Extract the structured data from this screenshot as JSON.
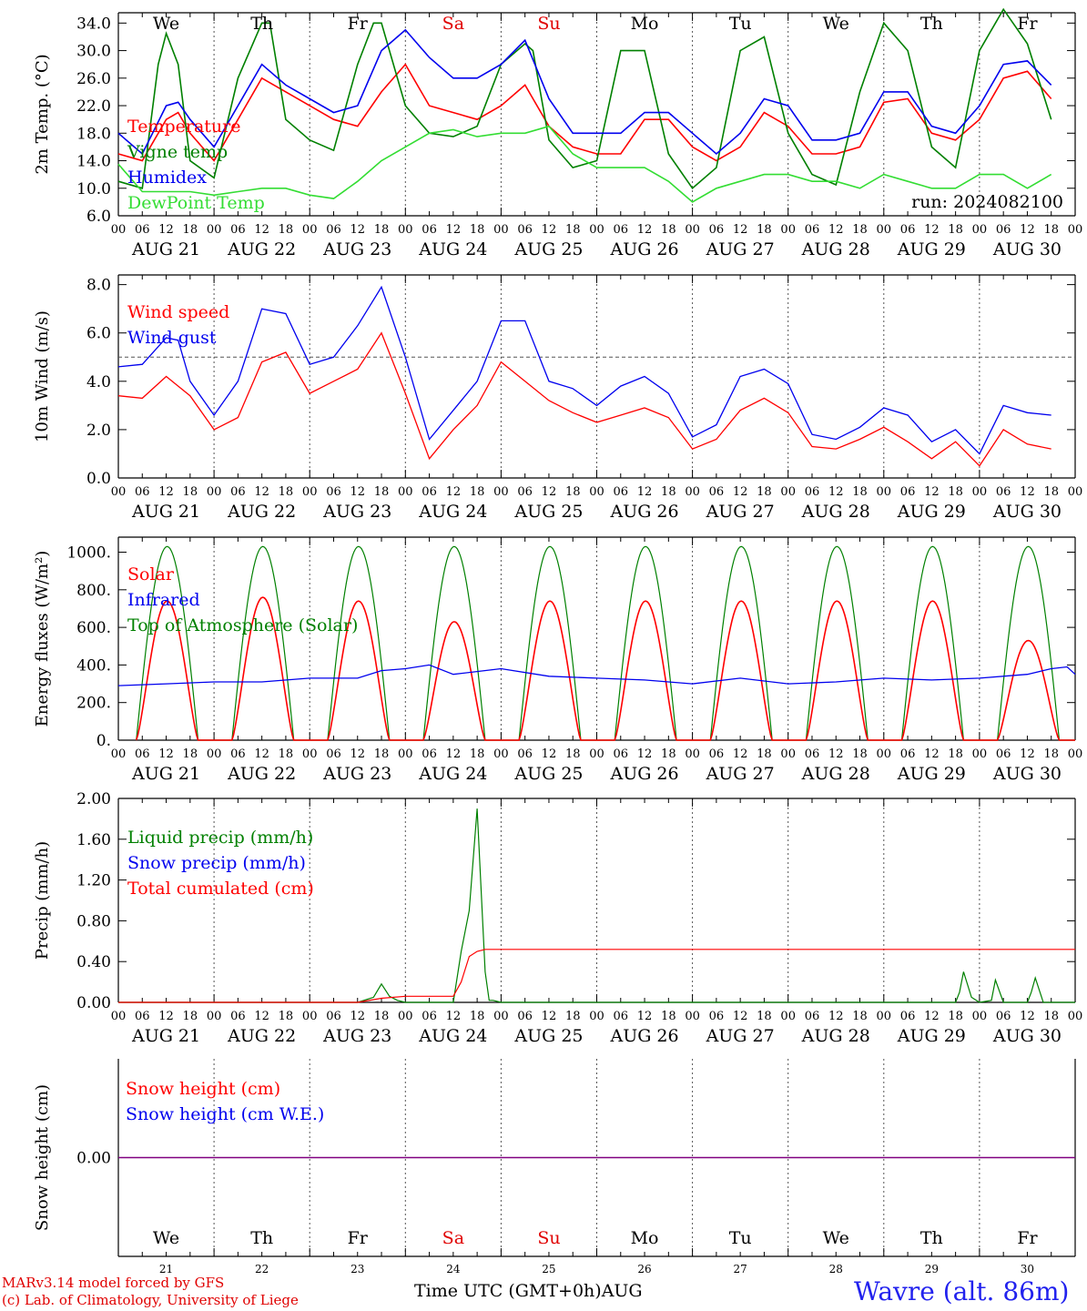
{
  "run_label": "run: 2024082100",
  "x_axis": {
    "hour_ticks": [
      "00",
      "06",
      "12",
      "18"
    ],
    "end_tick": "00",
    "dates": [
      "AUG 21",
      "AUG 22",
      "AUG 23",
      "AUG 24",
      "AUG 25",
      "AUG 26",
      "AUG 27",
      "AUG 28",
      "AUG 29",
      "AUG 30"
    ],
    "weekdays": [
      "We",
      "Th",
      "Fr",
      "Sa",
      "Su",
      "Mo",
      "Tu",
      "We",
      "Th",
      "Fr"
    ],
    "weekend_color": "#e00000",
    "weekday_color": "#000000",
    "weekend_days": [
      "Sa",
      "Su"
    ],
    "bottom_day_numbers": [
      "21",
      "22",
      "23",
      "24",
      "25",
      "26",
      "27",
      "28",
      "29",
      "30"
    ],
    "bottom_title": "Time UTC (GMT+0h)",
    "bottom_month": "AUG"
  },
  "footer": {
    "model_line": "MARv3.14 model forced by GFS",
    "credit_line": "(c) Lab. of Climatology, University of Liege",
    "station": "Wavre (alt. 86m)",
    "model_color": "#e00000",
    "station_color": "#2222ee"
  },
  "colors": {
    "red": "#ff0000",
    "green": "#008000",
    "blue": "#0000ee",
    "lightgreen": "#33dd33",
    "purple": "#800080"
  },
  "chart_data": [
    {
      "id": "temperature",
      "type": "line",
      "ylabel": "2m Temp. (°C)",
      "ylim": [
        6.0,
        35.5
      ],
      "yticks": [
        "6.0",
        "10.0",
        "14.0",
        "18.0",
        "22.0",
        "26.0",
        "30.0",
        "34.0"
      ],
      "ytick_values": [
        6,
        10,
        14,
        18,
        22,
        26,
        30,
        34
      ],
      "x_unit": "hours since AUG 21 00 UTC",
      "legend": [
        "Temperature",
        "Vigne temp",
        "Humidex",
        "DewPoint Temp"
      ],
      "series": [
        {
          "name": "Temperature",
          "color": "red",
          "x": [
            0,
            6,
            12,
            15,
            18,
            24,
            30,
            36,
            42,
            48,
            54,
            60,
            66,
            72,
            78,
            84,
            90,
            96,
            102,
            108,
            114,
            120,
            126,
            132,
            138,
            144,
            150,
            156,
            162,
            168,
            174,
            180,
            186,
            192,
            198,
            204,
            210,
            216,
            222,
            228,
            234
          ],
          "y": [
            15,
            14,
            20,
            21,
            18,
            14,
            20,
            26,
            24,
            22,
            20,
            19,
            24,
            28,
            22,
            21,
            20,
            22,
            25,
            19,
            16,
            15,
            15,
            20,
            20,
            16,
            14,
            16,
            21,
            19,
            15,
            15,
            16,
            22.5,
            23,
            18,
            17,
            20,
            26,
            27,
            23
          ]
        },
        {
          "name": "Vigne temp",
          "color": "green",
          "x": [
            0,
            6,
            10,
            12,
            15,
            18,
            24,
            30,
            36,
            38,
            42,
            48,
            54,
            60,
            64,
            66,
            72,
            78,
            84,
            90,
            96,
            102,
            104,
            108,
            114,
            120,
            126,
            132,
            138,
            144,
            150,
            156,
            162,
            168,
            174,
            180,
            186,
            192,
            198,
            204,
            210,
            216,
            222,
            228,
            234
          ],
          "y": [
            11,
            10,
            28,
            32.5,
            28,
            14,
            11.5,
            26,
            34,
            34,
            20,
            17,
            15.5,
            28,
            34,
            34,
            22,
            18,
            17.5,
            19,
            28,
            31,
            30,
            17,
            13,
            14,
            30,
            30,
            15,
            10,
            13,
            30,
            32,
            18,
            12,
            10.5,
            24,
            34,
            30,
            16,
            13,
            30,
            36,
            31,
            20
          ]
        },
        {
          "name": "Humidex",
          "color": "blue",
          "x": [
            0,
            6,
            12,
            15,
            18,
            24,
            30,
            36,
            42,
            48,
            54,
            60,
            66,
            72,
            78,
            84,
            90,
            96,
            102,
            108,
            114,
            120,
            126,
            132,
            138,
            144,
            150,
            156,
            162,
            168,
            174,
            180,
            186,
            192,
            198,
            204,
            210,
            216,
            222,
            228,
            234
          ],
          "y": [
            18,
            15,
            22,
            22.5,
            20,
            16,
            22,
            28,
            25,
            23,
            21,
            22,
            30,
            33,
            29,
            26,
            26,
            28,
            31.5,
            23,
            18,
            18,
            18,
            21,
            21,
            18,
            15,
            18,
            23,
            22,
            17,
            17,
            18,
            24,
            24,
            19,
            18,
            22,
            28,
            28.5,
            25
          ]
        },
        {
          "name": "DewPoint Temp",
          "color": "lightgreen",
          "x": [
            0,
            6,
            12,
            18,
            24,
            30,
            36,
            42,
            48,
            54,
            60,
            66,
            72,
            78,
            84,
            90,
            96,
            102,
            108,
            114,
            120,
            126,
            132,
            138,
            144,
            150,
            156,
            162,
            168,
            174,
            180,
            186,
            192,
            198,
            204,
            210,
            216,
            222,
            228,
            234
          ],
          "y": [
            13.5,
            9.5,
            9.5,
            9.5,
            9,
            9.5,
            10,
            10,
            9,
            8.5,
            11,
            14,
            16,
            18,
            18.5,
            17.5,
            18,
            18,
            19,
            15,
            13,
            13,
            13,
            11,
            8,
            10,
            11,
            12,
            12,
            11,
            11,
            10,
            12,
            11,
            10,
            10,
            12,
            12,
            10,
            12
          ]
        }
      ]
    },
    {
      "id": "wind",
      "type": "line",
      "ylabel": "10m Wind (m/s)",
      "ylim": [
        0.0,
        8.4
      ],
      "yticks": [
        "0.0",
        "2.0",
        "4.0",
        "6.0",
        "8.0"
      ],
      "ytick_values": [
        0,
        2,
        4,
        6,
        8
      ],
      "reference_line": 5.0,
      "legend": [
        "Wind speed",
        "Wind gust"
      ],
      "series": [
        {
          "name": "Wind speed",
          "color": "red",
          "x": [
            0,
            6,
            12,
            15,
            18,
            24,
            30,
            36,
            42,
            48,
            54,
            60,
            66,
            72,
            78,
            84,
            90,
            96,
            102,
            108,
            114,
            120,
            126,
            132,
            138,
            144,
            150,
            156,
            162,
            168,
            174,
            180,
            186,
            192,
            198,
            204,
            210,
            216,
            222,
            228,
            234
          ],
          "y": [
            3.4,
            3.3,
            4.2,
            3.8,
            3.4,
            2.0,
            2.5,
            4.8,
            5.2,
            3.5,
            4.0,
            4.5,
            6.0,
            3.5,
            0.8,
            2.0,
            3.0,
            4.8,
            4.0,
            3.2,
            2.7,
            2.3,
            2.6,
            2.9,
            2.5,
            1.2,
            1.6,
            2.8,
            3.3,
            2.7,
            1.3,
            1.2,
            1.6,
            2.1,
            1.5,
            0.8,
            1.5,
            0.5,
            2.0,
            1.4,
            1.2
          ]
        },
        {
          "name": "Wind gust",
          "color": "blue",
          "x": [
            0,
            6,
            12,
            15,
            18,
            24,
            30,
            36,
            42,
            48,
            54,
            60,
            66,
            72,
            78,
            84,
            90,
            96,
            102,
            108,
            114,
            120,
            126,
            132,
            138,
            144,
            150,
            156,
            162,
            168,
            174,
            180,
            186,
            192,
            198,
            204,
            210,
            216,
            222,
            228,
            234
          ],
          "y": [
            4.6,
            4.7,
            5.8,
            5.7,
            4.0,
            2.6,
            4.0,
            7.0,
            6.8,
            4.7,
            5.0,
            6.3,
            7.9,
            5.0,
            1.6,
            2.8,
            4.0,
            6.5,
            6.5,
            4.0,
            3.7,
            3.0,
            3.8,
            4.2,
            3.5,
            1.7,
            2.2,
            4.2,
            4.5,
            3.9,
            1.8,
            1.6,
            2.1,
            2.9,
            2.6,
            1.5,
            2.0,
            1.0,
            3.0,
            2.7,
            2.6
          ]
        }
      ]
    },
    {
      "id": "energy",
      "type": "line",
      "ylabel": "Energy fluxes (W/m²)",
      "ylim": [
        0,
        1080
      ],
      "yticks": [
        "0.",
        "200.",
        "400.",
        "600.",
        "800.",
        "1000."
      ],
      "ytick_values": [
        0,
        200,
        400,
        600,
        800,
        1000
      ],
      "legend": [
        "Solar",
        "Infrared",
        "Top of Atmosphere (Solar)"
      ],
      "solar_peaks_by_day": [
        740,
        760,
        740,
        630,
        740,
        740,
        740,
        740,
        740,
        530
      ],
      "toa_peak": 1030,
      "day_window_hours": [
        4.5,
        20
      ],
      "series": [
        {
          "name": "Infrared",
          "color": "blue",
          "x": [
            0,
            12,
            24,
            36,
            48,
            60,
            66,
            72,
            78,
            84,
            96,
            108,
            120,
            132,
            144,
            156,
            168,
            180,
            192,
            204,
            216,
            228,
            234,
            238,
            240
          ],
          "y": [
            290,
            300,
            310,
            310,
            330,
            330,
            370,
            380,
            400,
            350,
            380,
            340,
            330,
            320,
            300,
            330,
            300,
            310,
            330,
            320,
            330,
            350,
            380,
            390,
            350
          ]
        }
      ]
    },
    {
      "id": "precip",
      "type": "line",
      "ylabel": "Precip (mm/h)",
      "ylim": [
        0.0,
        2.0
      ],
      "yticks": [
        "0.00",
        "0.40",
        "0.80",
        "1.20",
        "1.60",
        "2.00"
      ],
      "ytick_values": [
        0,
        0.4,
        0.8,
        1.2,
        1.6,
        2.0
      ],
      "legend": [
        "Liquid precip (mm/h)",
        "Snow precip (mm/h)",
        "Total cumulated (cm)"
      ],
      "series": [
        {
          "name": "Liquid precip (mm/h)",
          "color": "green",
          "x": [
            0,
            60,
            64,
            66,
            68,
            70,
            72,
            84,
            86,
            88,
            90,
            92,
            93,
            94,
            96,
            210,
            211,
            212,
            214,
            216,
            219,
            220,
            222,
            228,
            229,
            230,
            232,
            240
          ],
          "y": [
            0,
            0,
            0.05,
            0.18,
            0.06,
            0.02,
            0,
            0,
            0.5,
            0.9,
            1.9,
            0.3,
            0.02,
            0.02,
            0,
            0,
            0.1,
            0.3,
            0.05,
            0,
            0.02,
            0.22,
            0,
            0,
            0.1,
            0.24,
            0,
            0
          ]
        },
        {
          "name": "Total cumulated (cm)",
          "color": "red",
          "x": [
            0,
            60,
            66,
            72,
            84,
            86,
            88,
            90,
            91,
            92,
            240
          ],
          "y": [
            0,
            0,
            0.04,
            0.06,
            0.06,
            0.2,
            0.45,
            0.5,
            0.51,
            0.52,
            0.52
          ]
        }
      ]
    },
    {
      "id": "snow",
      "type": "line",
      "ylabel": "Snow height (cm)",
      "ylim": [
        -0.1,
        0.1
      ],
      "yticks": [
        "0.00"
      ],
      "ytick_values": [
        0
      ],
      "legend": [
        "Snow height (cm)",
        "Snow height (cm W.E.)"
      ],
      "series": [
        {
          "name": "Snow height (cm)",
          "color": "purple",
          "x": [
            0,
            240
          ],
          "y": [
            0,
            0
          ]
        }
      ]
    }
  ]
}
